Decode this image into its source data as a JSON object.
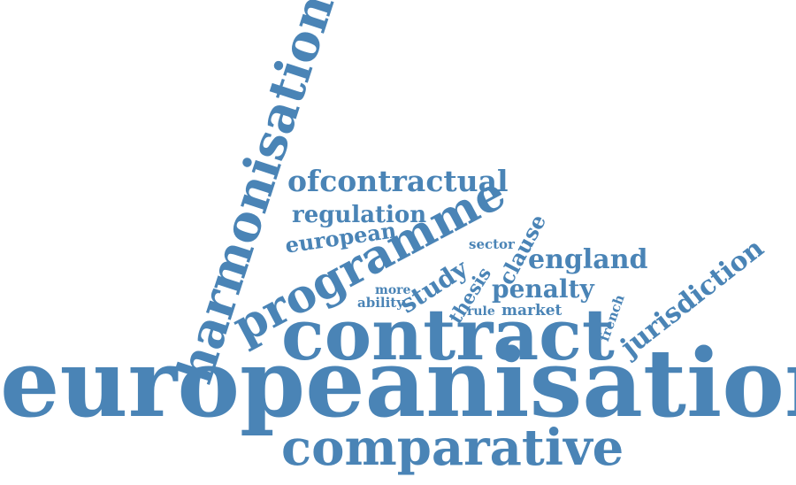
{
  "cloud": {
    "color": "#4a84b6",
    "words": {
      "europeanisation": "europeanisation",
      "contract": "contract",
      "comparative": "comparative",
      "harmonisation": "harmonisation",
      "programme": "programme",
      "ofcontractual": "ofcontractual",
      "regulation": "regulation",
      "european": "european",
      "study": "study",
      "sector": "sector",
      "clause": "clause",
      "thesis": "thesis",
      "england": "england",
      "penalty": "penalty",
      "more": "more",
      "ability": "ability",
      "rule": "rule",
      "market": "market",
      "french": "french",
      "jurisdiction": "jurisdiction"
    }
  }
}
